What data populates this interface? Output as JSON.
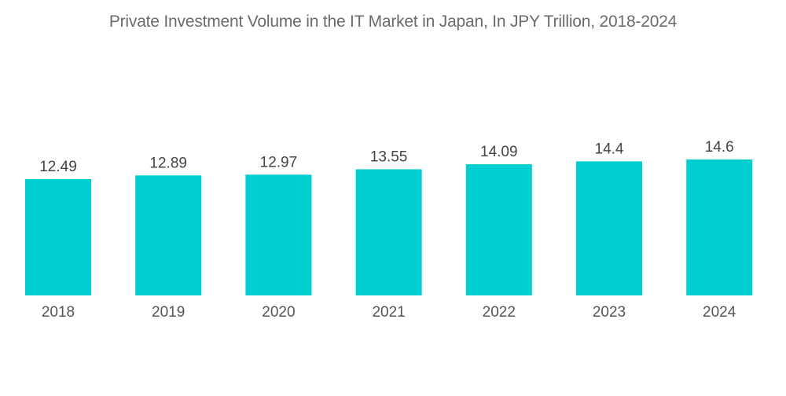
{
  "chart_data": {
    "type": "bar",
    "title": "Private Investment Volume in the IT Market in Japan, In JPY Trillion, 2018-2024",
    "xlabel": "",
    "ylabel": "",
    "categories": [
      "2018",
      "2019",
      "2020",
      "2021",
      "2022",
      "2023",
      "2024"
    ],
    "values": [
      12.49,
      12.89,
      12.97,
      13.55,
      14.09,
      14.4,
      14.6
    ],
    "value_labels": [
      "12.49",
      "12.89",
      "12.97",
      "13.55",
      "14.09",
      "14.4",
      "14.6"
    ],
    "ylim": [
      0,
      14.6
    ],
    "grid": false,
    "legend": "none",
    "bar_color": "#00CED1"
  }
}
